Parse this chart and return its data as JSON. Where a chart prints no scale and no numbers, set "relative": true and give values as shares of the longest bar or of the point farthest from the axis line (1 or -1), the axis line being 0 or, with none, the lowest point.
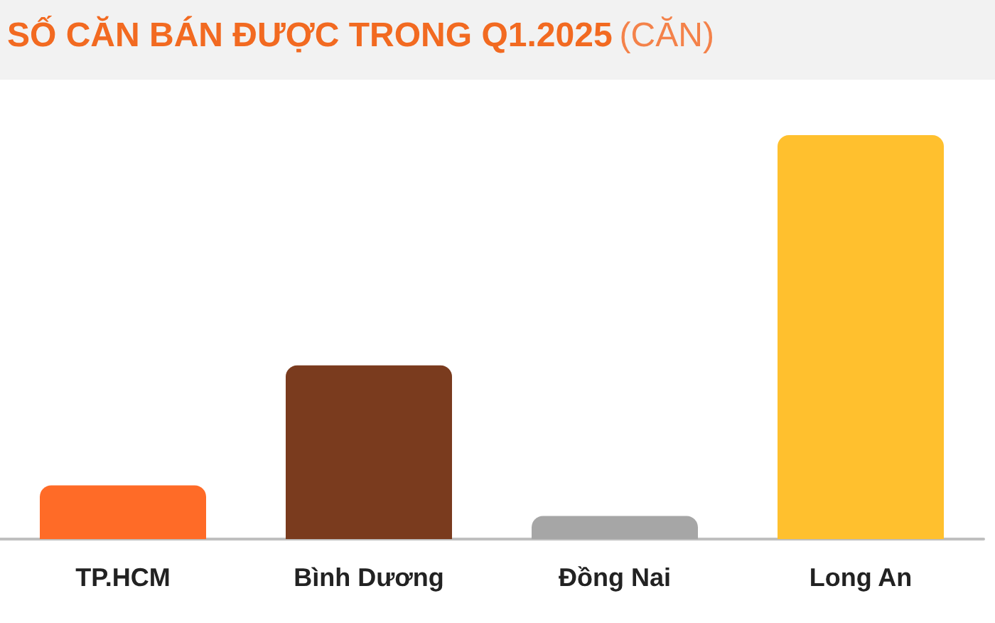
{
  "chart_data": {
    "type": "bar",
    "title": "SỐ CĂN BÁN ĐƯỢC TRONG Q1.2025",
    "subtitle": "(CĂN)",
    "relative": true,
    "categories": [
      "TP.HCM",
      "Bình Dương",
      "Đồng Nai",
      "Long An"
    ],
    "values": [
      0.133,
      0.43,
      0.057,
      1
    ],
    "colors": [
      "#ff6b27",
      "#7a3b1e",
      "#a6a6a6",
      "#ffc02e"
    ]
  }
}
